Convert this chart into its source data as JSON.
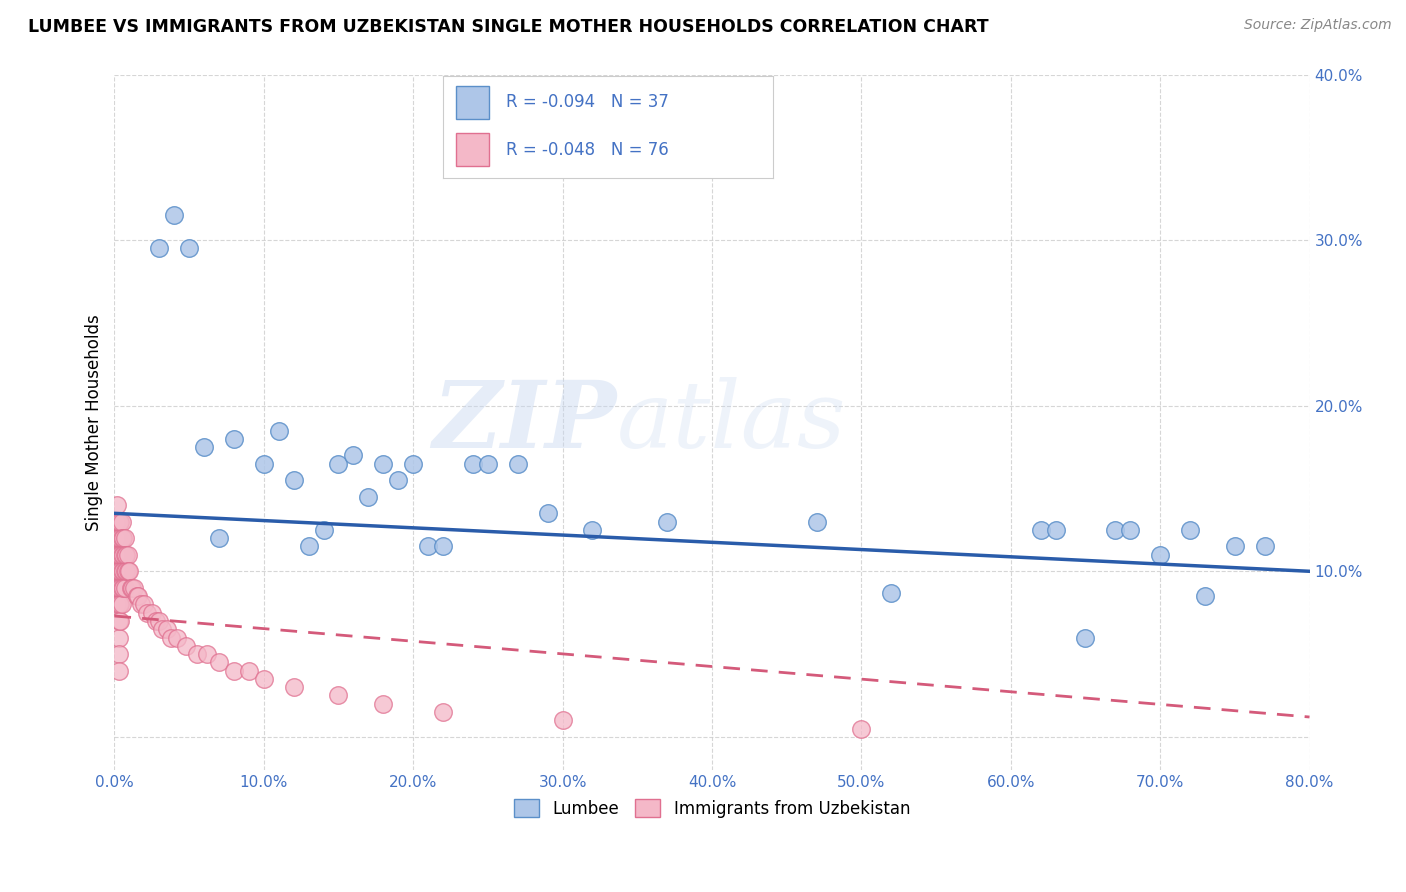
{
  "title": "LUMBEE VS IMMIGRANTS FROM UZBEKISTAN SINGLE MOTHER HOUSEHOLDS CORRELATION CHART",
  "source": "Source: ZipAtlas.com",
  "ylabel": "Single Mother Households",
  "xlim": [
    0,
    0.8
  ],
  "ylim": [
    -0.02,
    0.4
  ],
  "xticks": [
    0.0,
    0.1,
    0.2,
    0.3,
    0.4,
    0.5,
    0.6,
    0.7,
    0.8
  ],
  "yticks": [
    0.0,
    0.1,
    0.2,
    0.3,
    0.4
  ],
  "xtick_labels": [
    "0.0%",
    "10.0%",
    "20.0%",
    "30.0%",
    "40.0%",
    "50.0%",
    "60.0%",
    "70.0%",
    "80.0%"
  ],
  "ytick_labels": [
    "",
    "10.0%",
    "20.0%",
    "30.0%",
    "40.0%"
  ],
  "lumbee_R": -0.094,
  "lumbee_N": 37,
  "uzbekistan_R": -0.048,
  "uzbekistan_N": 76,
  "lumbee_color": "#aec6e8",
  "lumbee_edge_color": "#5b8fc9",
  "uzbekistan_color": "#f4b8c8",
  "uzbekistan_edge_color": "#e07090",
  "trend_lumbee_color": "#2a5caa",
  "trend_uzbekistan_color": "#d45a7a",
  "tick_color": "#4472c4",
  "watermark_zip": "ZIP",
  "watermark_atlas": "atlas",
  "lumbee_x": [
    0.03,
    0.04,
    0.05,
    0.06,
    0.07,
    0.08,
    0.1,
    0.11,
    0.12,
    0.13,
    0.14,
    0.15,
    0.16,
    0.17,
    0.18,
    0.19,
    0.2,
    0.21,
    0.22,
    0.24,
    0.25,
    0.27,
    0.29,
    0.32,
    0.37,
    0.47,
    0.52,
    0.62,
    0.63,
    0.65,
    0.67,
    0.68,
    0.7,
    0.72,
    0.73,
    0.75,
    0.77
  ],
  "lumbee_y": [
    0.295,
    0.315,
    0.295,
    0.175,
    0.12,
    0.18,
    0.165,
    0.185,
    0.155,
    0.115,
    0.125,
    0.165,
    0.17,
    0.145,
    0.165,
    0.155,
    0.165,
    0.115,
    0.115,
    0.165,
    0.165,
    0.165,
    0.135,
    0.125,
    0.13,
    0.13,
    0.087,
    0.125,
    0.125,
    0.06,
    0.125,
    0.125,
    0.11,
    0.125,
    0.085,
    0.115,
    0.115
  ],
  "uzbekistan_x": [
    0.001,
    0.001,
    0.001,
    0.001,
    0.001,
    0.002,
    0.002,
    0.002,
    0.002,
    0.002,
    0.002,
    0.002,
    0.003,
    0.003,
    0.003,
    0.003,
    0.003,
    0.003,
    0.003,
    0.003,
    0.003,
    0.003,
    0.004,
    0.004,
    0.004,
    0.004,
    0.004,
    0.004,
    0.004,
    0.005,
    0.005,
    0.005,
    0.005,
    0.005,
    0.005,
    0.006,
    0.006,
    0.006,
    0.006,
    0.007,
    0.007,
    0.007,
    0.007,
    0.008,
    0.008,
    0.009,
    0.009,
    0.01,
    0.011,
    0.012,
    0.013,
    0.015,
    0.016,
    0.018,
    0.02,
    0.022,
    0.025,
    0.028,
    0.03,
    0.032,
    0.035,
    0.038,
    0.042,
    0.048,
    0.055,
    0.062,
    0.07,
    0.08,
    0.09,
    0.1,
    0.12,
    0.15,
    0.18,
    0.22,
    0.3,
    0.5
  ],
  "uzbekistan_y": [
    0.13,
    0.12,
    0.11,
    0.1,
    0.09,
    0.14,
    0.13,
    0.12,
    0.11,
    0.1,
    0.09,
    0.08,
    0.13,
    0.12,
    0.11,
    0.1,
    0.09,
    0.08,
    0.07,
    0.06,
    0.05,
    0.04,
    0.13,
    0.12,
    0.11,
    0.1,
    0.09,
    0.08,
    0.07,
    0.13,
    0.12,
    0.11,
    0.1,
    0.09,
    0.08,
    0.12,
    0.11,
    0.1,
    0.09,
    0.12,
    0.11,
    0.1,
    0.09,
    0.11,
    0.1,
    0.11,
    0.1,
    0.1,
    0.09,
    0.09,
    0.09,
    0.085,
    0.085,
    0.08,
    0.08,
    0.075,
    0.075,
    0.07,
    0.07,
    0.065,
    0.065,
    0.06,
    0.06,
    0.055,
    0.05,
    0.05,
    0.045,
    0.04,
    0.04,
    0.035,
    0.03,
    0.025,
    0.02,
    0.015,
    0.01,
    0.005
  ],
  "trend_lumbee_x0": 0.0,
  "trend_lumbee_x1": 0.8,
  "trend_lumbee_y0": 0.135,
  "trend_lumbee_y1": 0.1,
  "trend_uzbek_x0": 0.0,
  "trend_uzbek_x1": 0.8,
  "trend_uzbek_y0": 0.073,
  "trend_uzbek_y1": 0.012
}
